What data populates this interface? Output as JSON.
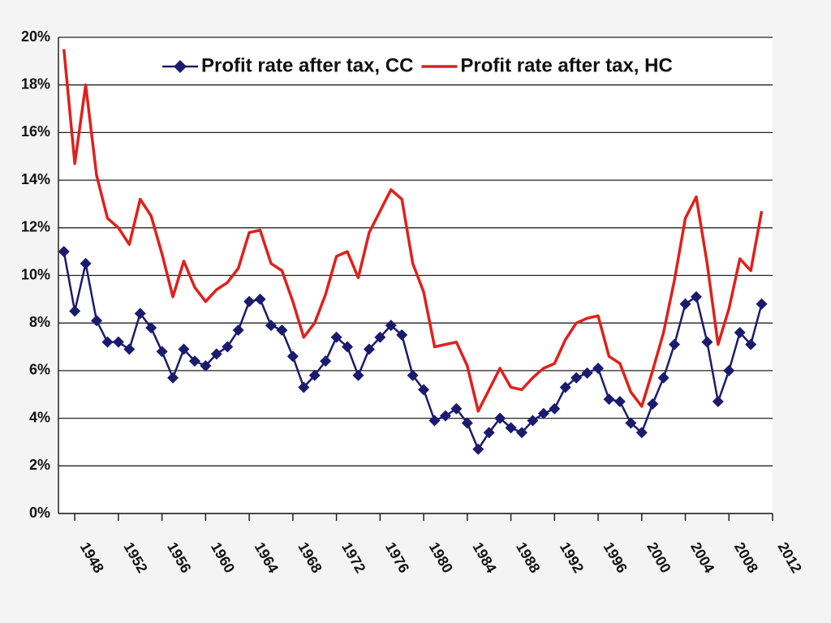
{
  "chart_data": {
    "type": "line",
    "x": [
      1947,
      1948,
      1949,
      1950,
      1951,
      1952,
      1953,
      1954,
      1955,
      1956,
      1957,
      1958,
      1959,
      1960,
      1961,
      1962,
      1963,
      1964,
      1965,
      1966,
      1967,
      1968,
      1969,
      1970,
      1971,
      1972,
      1973,
      1974,
      1975,
      1976,
      1977,
      1978,
      1979,
      1980,
      1981,
      1982,
      1983,
      1984,
      1985,
      1986,
      1987,
      1988,
      1989,
      1990,
      1991,
      1992,
      1993,
      1994,
      1995,
      1996,
      1997,
      1998,
      1999,
      2000,
      2001,
      2002,
      2003,
      2004,
      2005,
      2006,
      2007,
      2008,
      2009,
      2010,
      2011
    ],
    "series": [
      {
        "name": "Profit rate after tax, CC",
        "color": "#1a1a6e",
        "marker": "diamond",
        "values": [
          11.0,
          8.5,
          10.5,
          8.1,
          7.2,
          7.2,
          6.9,
          8.4,
          7.8,
          6.8,
          5.7,
          6.9,
          6.4,
          6.2,
          6.7,
          7.0,
          7.7,
          8.9,
          9.0,
          7.9,
          7.7,
          6.6,
          5.3,
          5.8,
          6.4,
          7.4,
          7.0,
          5.8,
          6.9,
          7.4,
          7.9,
          7.5,
          5.8,
          5.2,
          3.9,
          4.1,
          4.4,
          3.8,
          2.7,
          3.4,
          4.0,
          3.6,
          3.4,
          3.9,
          4.2,
          4.4,
          5.3,
          5.7,
          5.9,
          6.1,
          4.8,
          4.7,
          3.8,
          3.4,
          4.6,
          5.7,
          7.1,
          8.8,
          9.1,
          7.2,
          4.7,
          6.0,
          7.6,
          7.1,
          8.8
        ]
      },
      {
        "name": "Profit rate after tax, HC",
        "color": "#e0201b",
        "values": [
          19.5,
          14.7,
          18.0,
          14.2,
          12.4,
          12.0,
          11.3,
          13.2,
          12.5,
          10.9,
          9.1,
          10.6,
          9.5,
          8.9,
          9.4,
          9.7,
          10.3,
          11.8,
          11.9,
          10.5,
          10.2,
          8.9,
          7.4,
          8.0,
          9.2,
          10.8,
          11.0,
          9.9,
          11.8,
          12.7,
          13.6,
          13.2,
          10.5,
          9.3,
          7.0,
          7.1,
          7.2,
          6.2,
          4.3,
          5.2,
          6.1,
          5.3,
          5.2,
          5.7,
          6.1,
          6.3,
          7.3,
          8.0,
          8.2,
          8.3,
          6.6,
          6.3,
          5.1,
          4.5,
          6.0,
          7.6,
          9.8,
          12.4,
          13.3,
          10.5,
          7.1,
          8.6,
          10.7,
          10.2,
          12.7
        ]
      }
    ],
    "xlim": [
      1946.5,
      2012
    ],
    "xticks": [
      1948,
      1952,
      1956,
      1960,
      1964,
      1968,
      1972,
      1976,
      1980,
      1984,
      1988,
      1992,
      1996,
      2000,
      2004,
      2008,
      2012
    ],
    "ylim": [
      0,
      20
    ],
    "yticks": [
      {
        "value": 0,
        "label": "0%"
      },
      {
        "value": 2,
        "label": "2%"
      },
      {
        "value": 4,
        "label": "4%"
      },
      {
        "value": 6,
        "label": "6%"
      },
      {
        "value": 8,
        "label": "8%"
      },
      {
        "value": 10,
        "label": "10%"
      },
      {
        "value": 12,
        "label": "12%"
      },
      {
        "value": 14,
        "label": "14%"
      },
      {
        "value": 16,
        "label": "16%"
      },
      {
        "value": 18,
        "label": "18%"
      },
      {
        "value": 20,
        "label": "20%"
      }
    ],
    "grid": true,
    "legend": "top"
  }
}
